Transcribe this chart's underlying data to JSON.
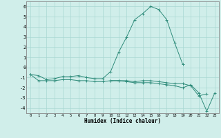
{
  "xlabel": "Humidex (Indice chaleur)",
  "x": [
    0,
    1,
    2,
    3,
    4,
    5,
    6,
    7,
    8,
    9,
    10,
    11,
    12,
    13,
    14,
    15,
    16,
    17,
    18,
    19,
    20,
    21,
    22,
    23
  ],
  "line1": [
    -0.7,
    -0.8,
    -1.2,
    -1.1,
    -0.9,
    -0.9,
    -0.8,
    -1.0,
    -1.1,
    -1.1,
    -0.4,
    1.5,
    3.0,
    4.7,
    5.3,
    6.0,
    5.7,
    4.7,
    2.4,
    0.3,
    null,
    null,
    null,
    null
  ],
  "line2": [
    -0.7,
    -1.3,
    -1.3,
    -1.3,
    -1.2,
    -1.2,
    -1.3,
    -1.3,
    -1.4,
    -1.4,
    -1.3,
    -1.3,
    -1.3,
    -1.4,
    -1.3,
    -1.3,
    -1.4,
    -1.5,
    -1.6,
    -1.6,
    -1.8,
    -2.8,
    -2.6,
    null
  ],
  "line3": [
    -0.7,
    null,
    null,
    null,
    null,
    null,
    null,
    null,
    null,
    null,
    -1.3,
    -1.3,
    -1.4,
    -1.5,
    -1.5,
    -1.5,
    -1.6,
    -1.7,
    -1.8,
    -2.0,
    -1.7,
    -2.5,
    -4.3,
    -2.5
  ],
  "ylim": [
    -4.5,
    6.5
  ],
  "yticks": [
    -4,
    -3,
    -2,
    -1,
    0,
    1,
    2,
    3,
    4,
    5,
    6
  ],
  "line_color": "#2e8b7a",
  "bg_color": "#d0eeea",
  "grid_color": "#a8d8d2",
  "spine_color": "#888888"
}
